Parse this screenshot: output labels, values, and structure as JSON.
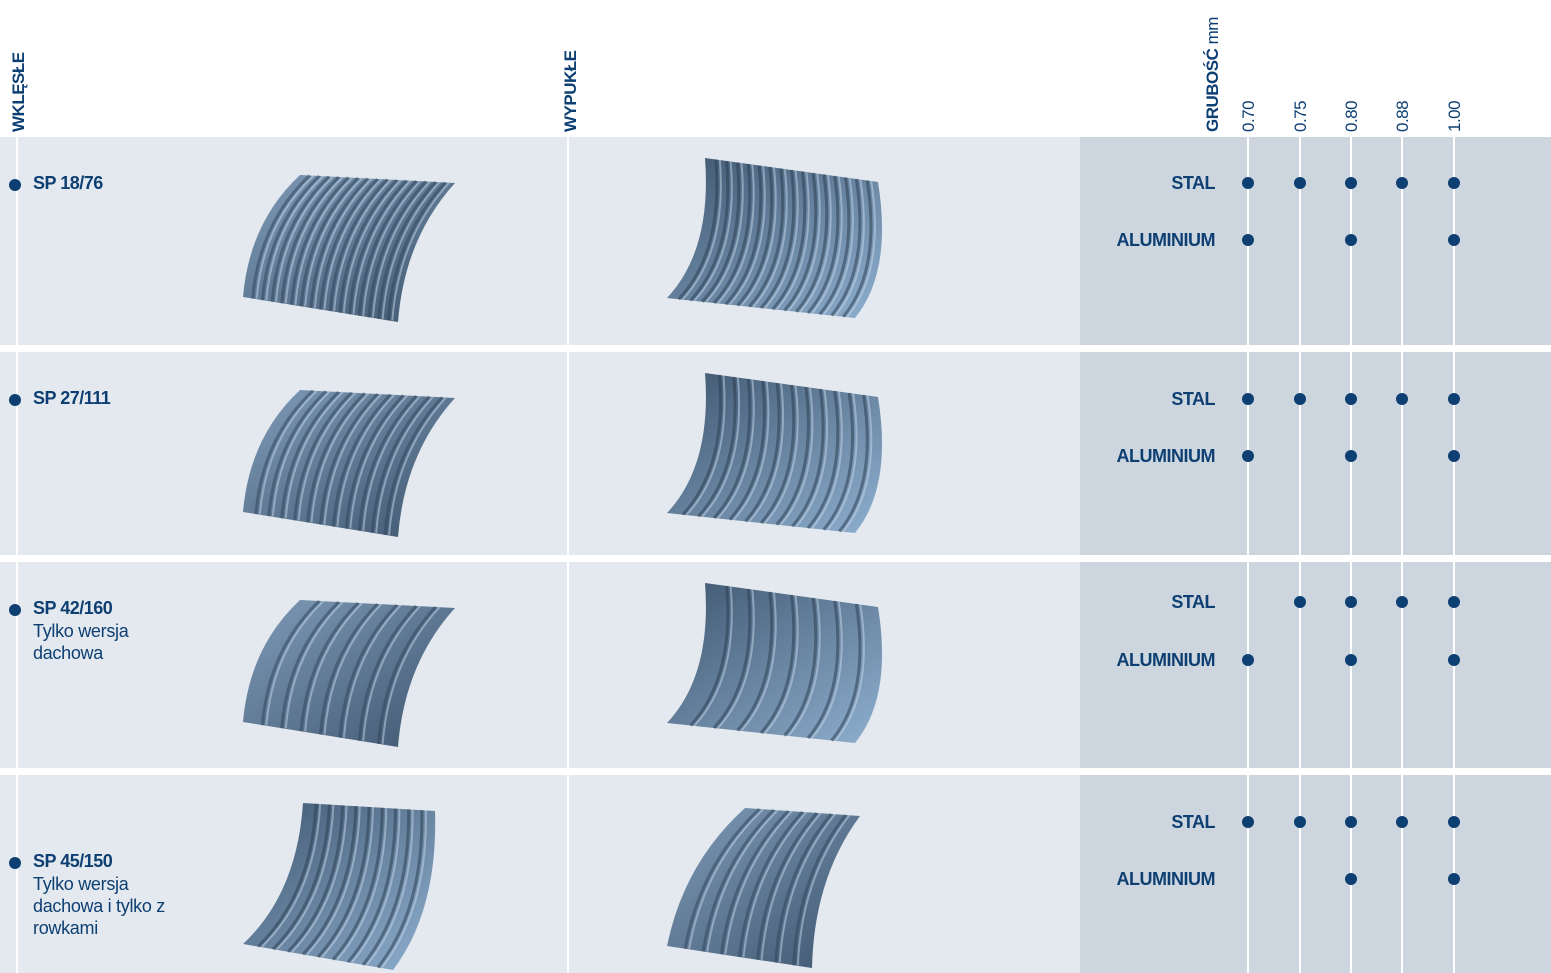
{
  "header": {
    "concave": "WKLĘSŁE",
    "convex": "WYPUKŁE",
    "thickness_label": "GRUBOŚĆ",
    "thickness_unit": "mm",
    "thicknesses": [
      "0.70",
      "0.75",
      "0.80",
      "0.88",
      "1.00"
    ]
  },
  "rows": [
    {
      "name": "SP 18/76",
      "materials": [
        {
          "name": "STAL",
          "available": [
            true,
            true,
            true,
            true,
            true
          ]
        },
        {
          "name": "ALUMINIUM",
          "available": [
            true,
            false,
            true,
            false,
            true
          ]
        }
      ]
    },
    {
      "name": "SP 27/111",
      "materials": [
        {
          "name": "STAL",
          "available": [
            true,
            true,
            true,
            true,
            true
          ]
        },
        {
          "name": "ALUMINIUM",
          "available": [
            true,
            false,
            true,
            false,
            true
          ]
        }
      ]
    },
    {
      "name": "SP 42/160",
      "note": "Tylko wersja dachowa",
      "materials": [
        {
          "name": "STAL",
          "available": [
            false,
            true,
            true,
            true,
            true
          ]
        },
        {
          "name": "ALUMINIUM",
          "available": [
            true,
            false,
            true,
            false,
            true
          ]
        }
      ]
    },
    {
      "name": "SP 45/150",
      "note": "Tylko wersja dachowa i tylko z rowkami",
      "materials": [
        {
          "name": "STAL",
          "available": [
            true,
            true,
            true,
            true,
            true
          ]
        },
        {
          "name": "ALUMINIUM",
          "available": [
            false,
            false,
            true,
            false,
            true
          ]
        }
      ]
    }
  ]
}
